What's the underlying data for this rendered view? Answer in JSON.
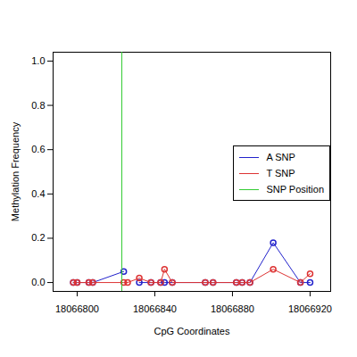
{
  "chart_data": {
    "type": "line",
    "x_label": "CpG Coordinates",
    "y_label": "Methylation Frequency",
    "x": [
      18066798,
      18066800,
      18066806,
      18066808,
      18066824,
      18066826,
      18066832,
      18066838,
      18066843,
      18066845,
      18066849,
      18066866,
      18066870,
      18066882,
      18066885,
      18066889,
      18066901,
      18066915,
      18066920
    ],
    "series": [
      {
        "name": "A SNP",
        "color": "#2222cc",
        "marker": "circle",
        "values": [
          0,
          0,
          0,
          0,
          0.05,
          null,
          0,
          0,
          0,
          0,
          0,
          0,
          0,
          0,
          0,
          0,
          0.18,
          0,
          0
        ]
      },
      {
        "name": "T SNP",
        "color": "#dd3333",
        "marker": "circle",
        "values": [
          0,
          0,
          0,
          0,
          0,
          0,
          0.02,
          0,
          0,
          0.06,
          0,
          0,
          0,
          0,
          0,
          0,
          0.06,
          0,
          0.04
        ]
      }
    ],
    "snp_position": {
      "name": "SNP Position",
      "color": "#33cc33",
      "value": 18066823
    },
    "xlim": [
      18066787.6,
      18066930.6
    ],
    "xticks": [
      18066800,
      18066840,
      18066880,
      18066920
    ],
    "ylim": [
      -0.04,
      1.04
    ],
    "yticks": [
      {
        "value": 0,
        "label": "0.0"
      },
      {
        "value": 0.2,
        "label": "0.2"
      },
      {
        "value": 0.4,
        "label": "0.4"
      },
      {
        "value": 0.6,
        "label": "0.6"
      },
      {
        "value": 0.8,
        "label": "0.8"
      },
      {
        "value": 1.0,
        "label": "1.0"
      }
    ],
    "legend": "right",
    "grid": false
  }
}
